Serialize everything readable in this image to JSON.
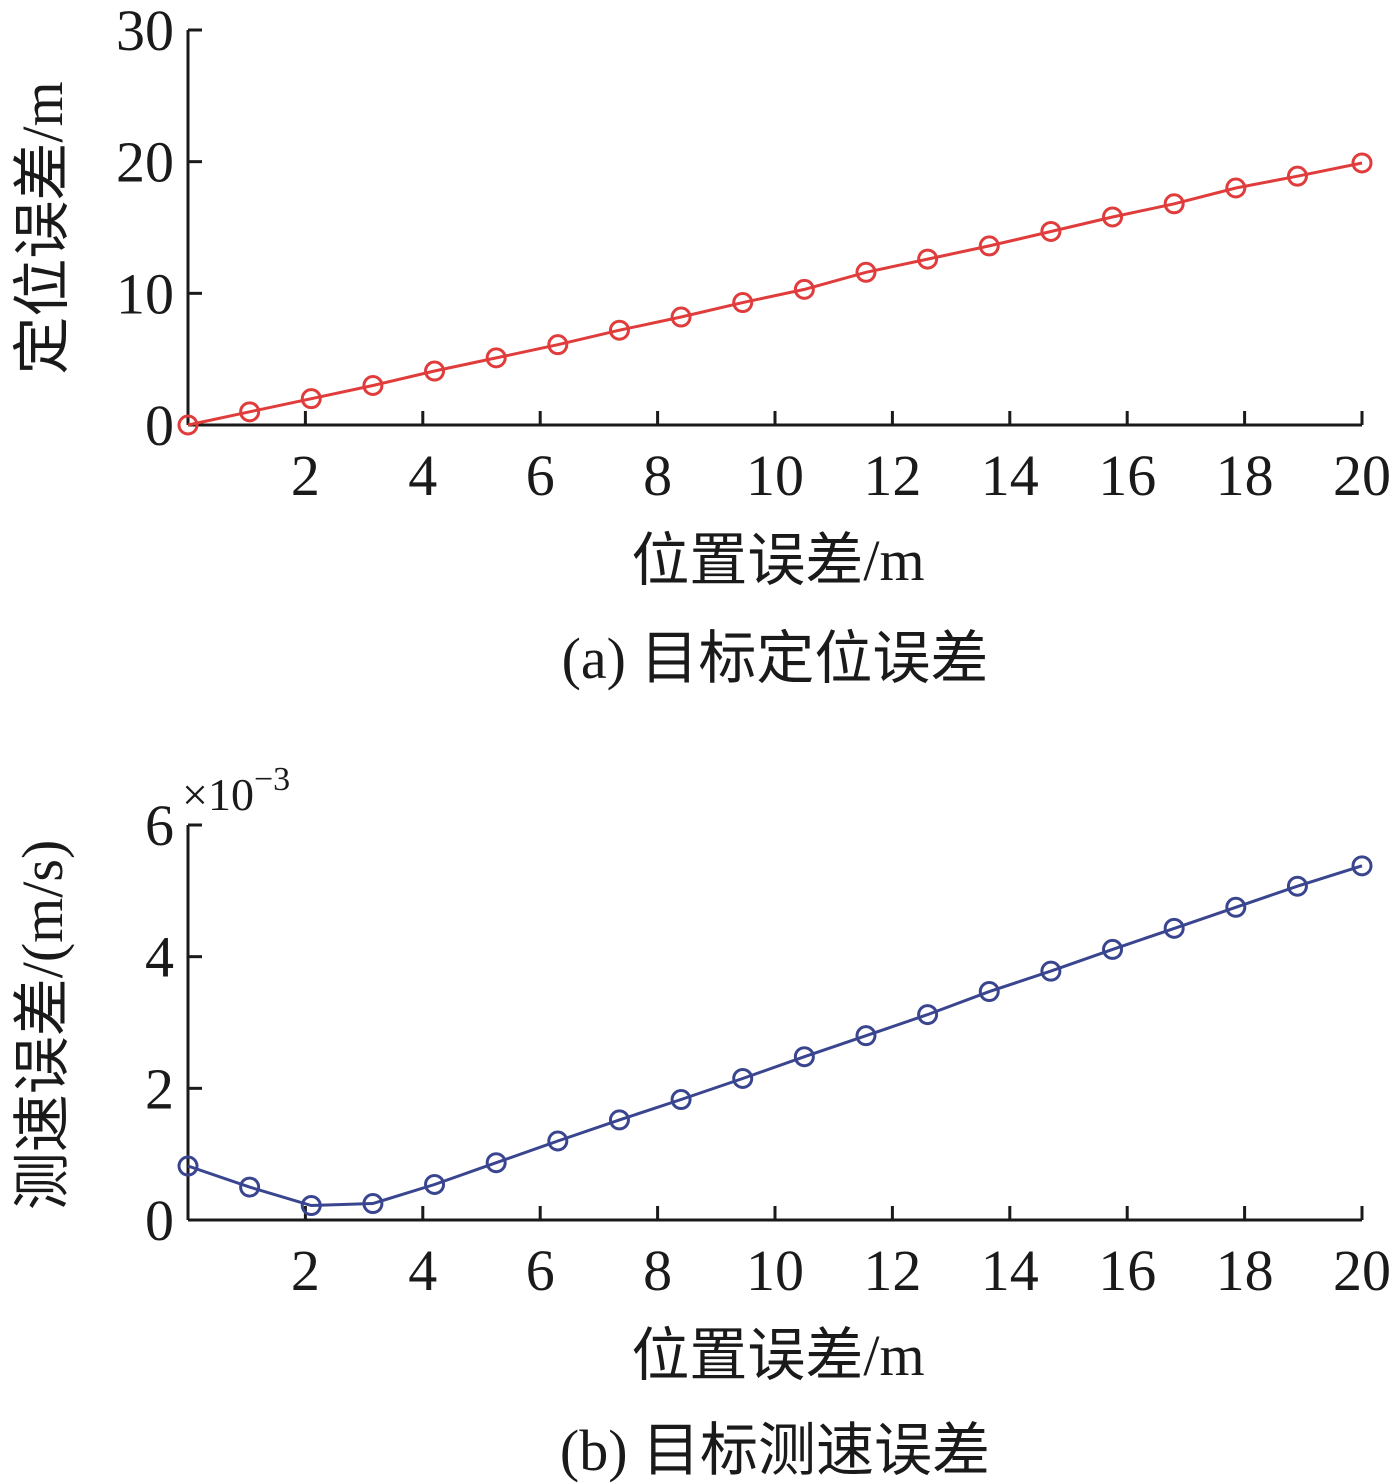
{
  "chart_data": [
    {
      "type": "line",
      "caption": "(a) 目标定位误差",
      "xlabel": "位置误差/m",
      "ylabel": "定位误差/m",
      "xlim": [
        0,
        20
      ],
      "ylim": [
        0,
        30
      ],
      "x_ticks": [
        2,
        4,
        6,
        8,
        10,
        12,
        14,
        16,
        18,
        20
      ],
      "y_ticks": [
        0,
        10,
        20,
        30
      ],
      "grid": false,
      "series": [
        {
          "color": "#e03c3c",
          "marker": "circle",
          "x": [
            0,
            1.05,
            2.1,
            3.15,
            4.2,
            5.25,
            6.3,
            7.35,
            8.4,
            9.45,
            10.5,
            11.55,
            12.6,
            13.65,
            14.7,
            15.75,
            16.8,
            17.85,
            18.9,
            20
          ],
          "y": [
            0,
            1.0,
            2.0,
            3.0,
            4.1,
            5.1,
            6.1,
            7.2,
            8.2,
            9.3,
            10.3,
            11.6,
            12.6,
            13.6,
            14.7,
            15.8,
            16.8,
            18.0,
            18.9,
            19.9
          ]
        }
      ]
    },
    {
      "type": "line",
      "caption": "(b) 目标测速误差",
      "xlabel": "位置误差/m",
      "ylabel": "测速误差/(m/s)",
      "y_scale_label": "×10",
      "y_scale_exponent": "−3",
      "xlim": [
        0,
        20
      ],
      "ylim": [
        0,
        6
      ],
      "x_ticks": [
        2,
        4,
        6,
        8,
        10,
        12,
        14,
        16,
        18,
        20
      ],
      "y_ticks": [
        0,
        2,
        4,
        6
      ],
      "grid": false,
      "series": [
        {
          "color": "#3a4590",
          "marker": "circle",
          "x": [
            0,
            1.05,
            2.1,
            3.15,
            4.2,
            5.25,
            6.3,
            7.35,
            8.4,
            9.45,
            10.5,
            11.55,
            12.6,
            13.65,
            14.7,
            15.75,
            16.8,
            17.85,
            18.9,
            20
          ],
          "y": [
            0.82,
            0.5,
            0.22,
            0.25,
            0.54,
            0.87,
            1.2,
            1.52,
            1.83,
            2.15,
            2.48,
            2.8,
            3.12,
            3.47,
            3.78,
            4.11,
            4.43,
            4.75,
            5.07,
            5.38
          ]
        }
      ]
    }
  ]
}
